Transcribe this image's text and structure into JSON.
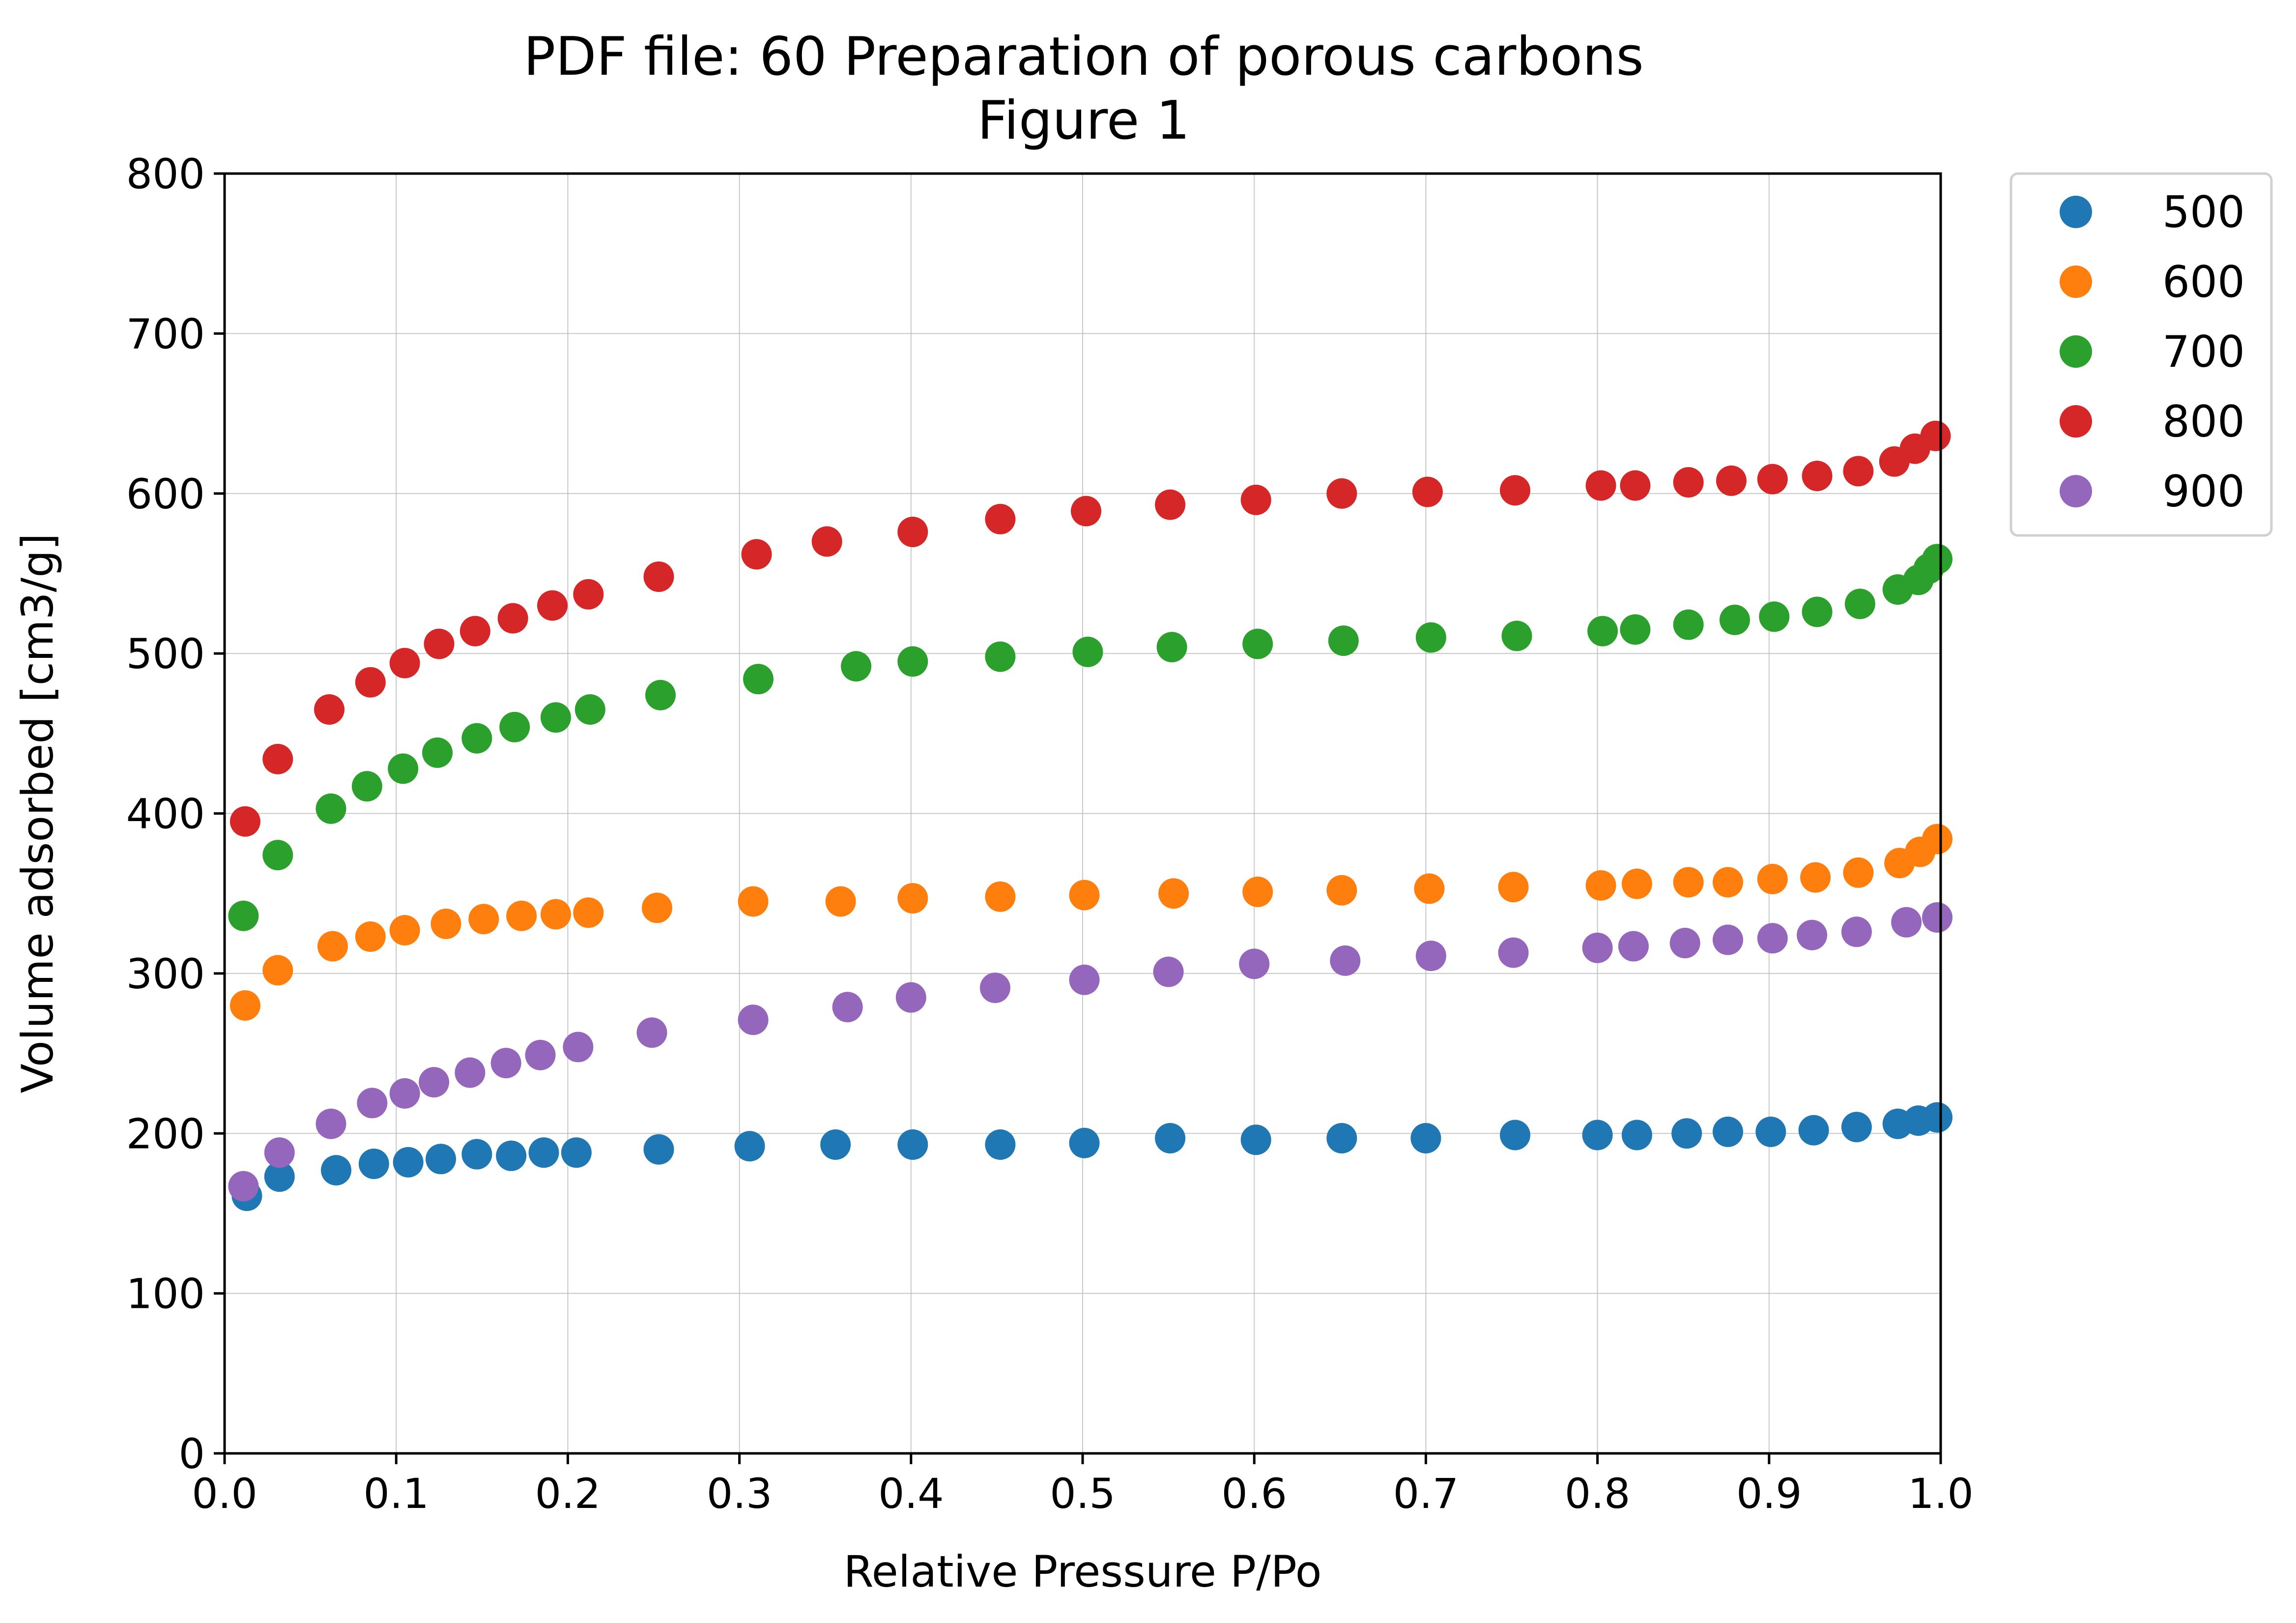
{
  "chart_data": {
    "type": "scatter",
    "title": "PDF file: 60 Preparation of porous carbons",
    "subtitle": "Figure 1",
    "xlabel": "Relative Pressure P/Po",
    "ylabel": "Volume adsorbed [cm3/g]",
    "xlim": [
      0.0,
      1.0
    ],
    "ylim": [
      0,
      800
    ],
    "xticks": [
      0.0,
      0.1,
      0.2,
      0.3,
      0.4,
      0.5,
      0.6,
      0.7,
      0.8,
      0.9,
      1.0
    ],
    "xtick_labels": [
      "0.0",
      "0.1",
      "0.2",
      "0.3",
      "0.4",
      "0.5",
      "0.6",
      "0.7",
      "0.8",
      "0.9",
      "1.0"
    ],
    "yticks": [
      0,
      100,
      200,
      300,
      400,
      500,
      600,
      700,
      800
    ],
    "ytick_labels": [
      "0",
      "100",
      "200",
      "300",
      "400",
      "500",
      "600",
      "700",
      "800"
    ],
    "grid": true,
    "legend_position": "outside top-right",
    "series": [
      {
        "name": "500",
        "color": "#1f77b4",
        "points": [
          [
            0.013,
            161
          ],
          [
            0.032,
            173
          ],
          [
            0.065,
            177
          ],
          [
            0.087,
            181
          ],
          [
            0.107,
            182
          ],
          [
            0.126,
            184
          ],
          [
            0.147,
            187
          ],
          [
            0.167,
            186
          ],
          [
            0.186,
            188
          ],
          [
            0.205,
            188
          ],
          [
            0.253,
            190
          ],
          [
            0.306,
            192
          ],
          [
            0.356,
            193
          ],
          [
            0.401,
            193
          ],
          [
            0.452,
            193
          ],
          [
            0.501,
            194
          ],
          [
            0.551,
            197
          ],
          [
            0.601,
            196
          ],
          [
            0.651,
            197
          ],
          [
            0.7,
            197
          ],
          [
            0.752,
            199
          ],
          [
            0.8,
            199
          ],
          [
            0.823,
            199
          ],
          [
            0.852,
            200
          ],
          [
            0.876,
            201
          ],
          [
            0.901,
            201
          ],
          [
            0.926,
            202
          ],
          [
            0.951,
            204
          ],
          [
            0.975,
            206
          ],
          [
            0.987,
            208
          ],
          [
            0.998,
            210
          ]
        ]
      },
      {
        "name": "600",
        "color": "#ff7f0e",
        "points": [
          [
            0.012,
            280
          ],
          [
            0.031,
            302
          ],
          [
            0.063,
            317
          ],
          [
            0.085,
            323
          ],
          [
            0.105,
            327
          ],
          [
            0.129,
            331
          ],
          [
            0.151,
            334
          ],
          [
            0.173,
            336
          ],
          [
            0.193,
            337
          ],
          [
            0.212,
            338
          ],
          [
            0.252,
            341
          ],
          [
            0.308,
            345
          ],
          [
            0.359,
            345
          ],
          [
            0.401,
            347
          ],
          [
            0.452,
            348
          ],
          [
            0.501,
            349
          ],
          [
            0.553,
            350
          ],
          [
            0.602,
            351
          ],
          [
            0.651,
            352
          ],
          [
            0.702,
            353
          ],
          [
            0.751,
            354
          ],
          [
            0.802,
            355
          ],
          [
            0.823,
            356
          ],
          [
            0.853,
            357
          ],
          [
            0.876,
            357
          ],
          [
            0.902,
            359
          ],
          [
            0.927,
            360
          ],
          [
            0.952,
            363
          ],
          [
            0.976,
            369
          ],
          [
            0.988,
            376
          ],
          [
            0.998,
            384
          ]
        ]
      },
      {
        "name": "700",
        "color": "#2ca02c",
        "points": [
          [
            0.011,
            336
          ],
          [
            0.031,
            374
          ],
          [
            0.062,
            403
          ],
          [
            0.083,
            417
          ],
          [
            0.104,
            428
          ],
          [
            0.124,
            438
          ],
          [
            0.147,
            447
          ],
          [
            0.169,
            454
          ],
          [
            0.193,
            460
          ],
          [
            0.213,
            465
          ],
          [
            0.254,
            474
          ],
          [
            0.311,
            484
          ],
          [
            0.368,
            492
          ],
          [
            0.401,
            495
          ],
          [
            0.452,
            498
          ],
          [
            0.503,
            501
          ],
          [
            0.552,
            504
          ],
          [
            0.602,
            506
          ],
          [
            0.652,
            508
          ],
          [
            0.703,
            510
          ],
          [
            0.753,
            511
          ],
          [
            0.803,
            514
          ],
          [
            0.822,
            515
          ],
          [
            0.853,
            518
          ],
          [
            0.88,
            521
          ],
          [
            0.903,
            523
          ],
          [
            0.928,
            526
          ],
          [
            0.953,
            531
          ],
          [
            0.975,
            540
          ],
          [
            0.987,
            546
          ],
          [
            0.993,
            553
          ],
          [
            0.998,
            559
          ]
        ]
      },
      {
        "name": "800",
        "color": "#d62728",
        "points": [
          [
            0.012,
            395
          ],
          [
            0.031,
            434
          ],
          [
            0.061,
            465
          ],
          [
            0.085,
            482
          ],
          [
            0.105,
            494
          ],
          [
            0.125,
            506
          ],
          [
            0.146,
            514
          ],
          [
            0.168,
            522
          ],
          [
            0.191,
            530
          ],
          [
            0.212,
            537
          ],
          [
            0.253,
            548
          ],
          [
            0.31,
            562
          ],
          [
            0.351,
            570
          ],
          [
            0.401,
            576
          ],
          [
            0.452,
            584
          ],
          [
            0.502,
            589
          ],
          [
            0.551,
            593
          ],
          [
            0.601,
            596
          ],
          [
            0.651,
            600
          ],
          [
            0.701,
            601
          ],
          [
            0.752,
            602
          ],
          [
            0.802,
            605
          ],
          [
            0.822,
            605
          ],
          [
            0.853,
            607
          ],
          [
            0.878,
            608
          ],
          [
            0.902,
            609
          ],
          [
            0.928,
            611
          ],
          [
            0.952,
            614
          ],
          [
            0.973,
            620
          ],
          [
            0.985,
            628
          ],
          [
            0.997,
            636
          ]
        ]
      },
      {
        "name": "900",
        "color": "#9467bd",
        "points": [
          [
            0.011,
            167
          ],
          [
            0.032,
            188
          ],
          [
            0.062,
            206
          ],
          [
            0.086,
            219
          ],
          [
            0.105,
            225
          ],
          [
            0.122,
            232
          ],
          [
            0.143,
            238
          ],
          [
            0.164,
            244
          ],
          [
            0.184,
            249
          ],
          [
            0.206,
            254
          ],
          [
            0.249,
            263
          ],
          [
            0.308,
            271
          ],
          [
            0.363,
            279
          ],
          [
            0.4,
            285
          ],
          [
            0.449,
            291
          ],
          [
            0.501,
            296
          ],
          [
            0.55,
            301
          ],
          [
            0.6,
            306
          ],
          [
            0.653,
            308
          ],
          [
            0.703,
            311
          ],
          [
            0.751,
            313
          ],
          [
            0.8,
            316
          ],
          [
            0.821,
            317
          ],
          [
            0.851,
            319
          ],
          [
            0.876,
            321
          ],
          [
            0.902,
            322
          ],
          [
            0.925,
            324
          ],
          [
            0.951,
            326
          ],
          [
            0.98,
            332
          ],
          [
            0.998,
            335
          ]
        ]
      }
    ]
  }
}
